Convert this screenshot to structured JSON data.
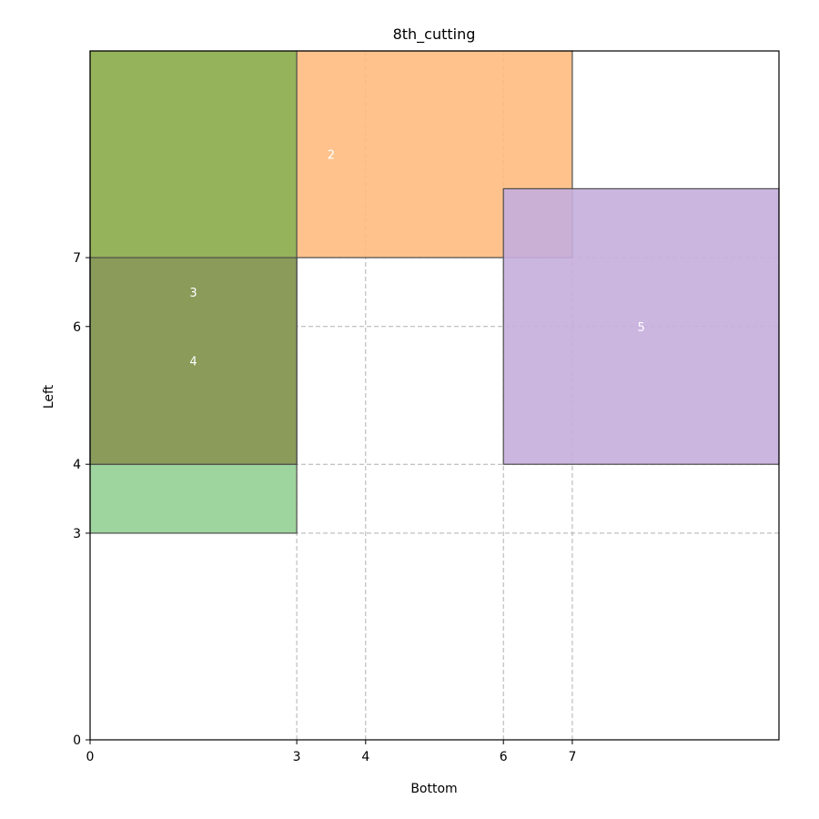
{
  "chart_data": {
    "type": "rectangles",
    "title": "8th_cutting",
    "xlabel": "Bottom",
    "ylabel": "Left",
    "xlim": [
      0,
      10
    ],
    "ylim": [
      0,
      10
    ],
    "xticks": [
      0,
      3,
      4,
      6,
      7
    ],
    "yticks": [
      0,
      3,
      4,
      6,
      7
    ],
    "grid": "dashed at tick positions",
    "rectangles": [
      {
        "label": "",
        "x0": 0,
        "y0": 7,
        "x1": 3,
        "y1": 10,
        "color": "#8aab48"
      },
      {
        "label": "2",
        "x0": 3,
        "y0": 7,
        "x1": 7,
        "y1": 10,
        "color": "#ffbb80"
      },
      {
        "label": "",
        "x0": 0,
        "y0": 3,
        "x1": 3,
        "y1": 7,
        "color": "#94cf92"
      },
      {
        "label": "3",
        "x0": 0,
        "y0": 4,
        "x1": 3,
        "y1": 7,
        "color": "#8a9a5a"
      },
      {
        "label": "4",
        "x0": 0,
        "y0": 4,
        "x1": 3,
        "y1": 7,
        "color": "#8a9a5a"
      },
      {
        "label": "5",
        "x0": 6,
        "y0": 4,
        "x1": 10,
        "y1": 8,
        "color": "#c5aedd"
      }
    ],
    "label_positions": [
      {
        "label": "2",
        "x": 3.5,
        "y": 8.5
      },
      {
        "label": "3",
        "x": 1.5,
        "y": 6.5
      },
      {
        "label": "4",
        "x": 1.5,
        "y": 5.5
      },
      {
        "label": "5",
        "x": 8,
        "y": 6
      }
    ]
  }
}
